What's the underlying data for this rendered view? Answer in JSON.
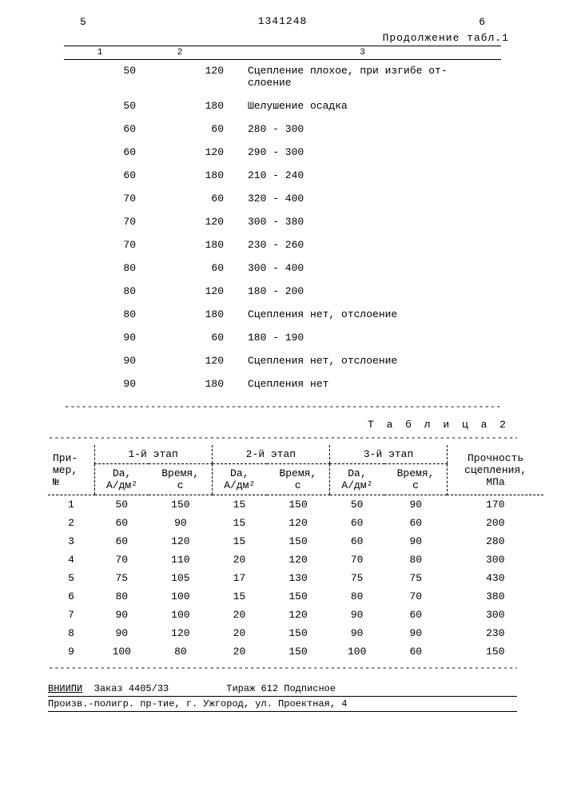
{
  "page": {
    "left_num": "5",
    "right_num": "6",
    "doc_number": "1341248",
    "cont_label": "Продолжение табл.1",
    "t1_headers": [
      "1",
      "2",
      "3"
    ],
    "t2_label": "Т а б л и ц а  2"
  },
  "table1": {
    "rows": [
      {
        "c1": "50",
        "c2": "120",
        "c3": "Сцепление плохое, при изгибе от-\nслоение"
      },
      {
        "c1": "50",
        "c2": "180",
        "c3": "Шелушение осадка"
      },
      {
        "c1": "60",
        "c2": "60",
        "c3": "280 - 300"
      },
      {
        "c1": "60",
        "c2": "120",
        "c3": "290 - 300"
      },
      {
        "c1": "60",
        "c2": "180",
        "c3": "210 - 240"
      },
      {
        "c1": "70",
        "c2": "60",
        "c3": "320 - 400"
      },
      {
        "c1": "70",
        "c2": "120",
        "c3": "300 - 380"
      },
      {
        "c1": "70",
        "c2": "180",
        "c3": "230 - 260"
      },
      {
        "c1": "80",
        "c2": "60",
        "c3": "300 - 400"
      },
      {
        "c1": "80",
        "c2": "120",
        "c3": "180 - 200"
      },
      {
        "c1": "80",
        "c2": "180",
        "c3": "Сцепления нет, отслоение"
      },
      {
        "c1": "90",
        "c2": "60",
        "c3": "180 - 190"
      },
      {
        "c1": "90",
        "c2": "120",
        "c3": "Сцепления нет, отслоение"
      },
      {
        "c1": "90",
        "c2": "180",
        "c3": "Сцепления нет"
      }
    ]
  },
  "table2": {
    "col_groups": [
      "При-\nмер,\n№",
      "1-й этап",
      "2-й этап",
      "3-й этап",
      "Прочность\nсцепления,\nМПа"
    ],
    "sub_cols": [
      "Dа,\nА/дм²",
      "Время,\nс"
    ],
    "rows": [
      [
        "1",
        "50",
        "150",
        "15",
        "150",
        "50",
        "90",
        "170"
      ],
      [
        "2",
        "60",
        "90",
        "15",
        "120",
        "60",
        "60",
        "200"
      ],
      [
        "3",
        "60",
        "120",
        "15",
        "150",
        "60",
        "90",
        "280"
      ],
      [
        "4",
        "70",
        "110",
        "20",
        "120",
        "70",
        "80",
        "300"
      ],
      [
        "5",
        "75",
        "105",
        "17",
        "130",
        "75",
        "75",
        "430"
      ],
      [
        "6",
        "80",
        "100",
        "15",
        "150",
        "80",
        "70",
        "380"
      ],
      [
        "7",
        "90",
        "100",
        "20",
        "120",
        "90",
        "60",
        "300"
      ],
      [
        "8",
        "90",
        "120",
        "20",
        "150",
        "90",
        "90",
        "230"
      ],
      [
        "9",
        "100",
        "80",
        "20",
        "150",
        "100",
        "60",
        "150"
      ]
    ]
  },
  "footer": {
    "line1_left": "ВНИИПИ",
    "line1_mid": "Заказ 4405/33",
    "line1_right": "Тираж 612   Подписное",
    "line2": "Произв.-полигр. пр-тие, г. Ужгород, ул. Проектная, 4"
  },
  "dash": "----------------------------------------------------------------------------------"
}
